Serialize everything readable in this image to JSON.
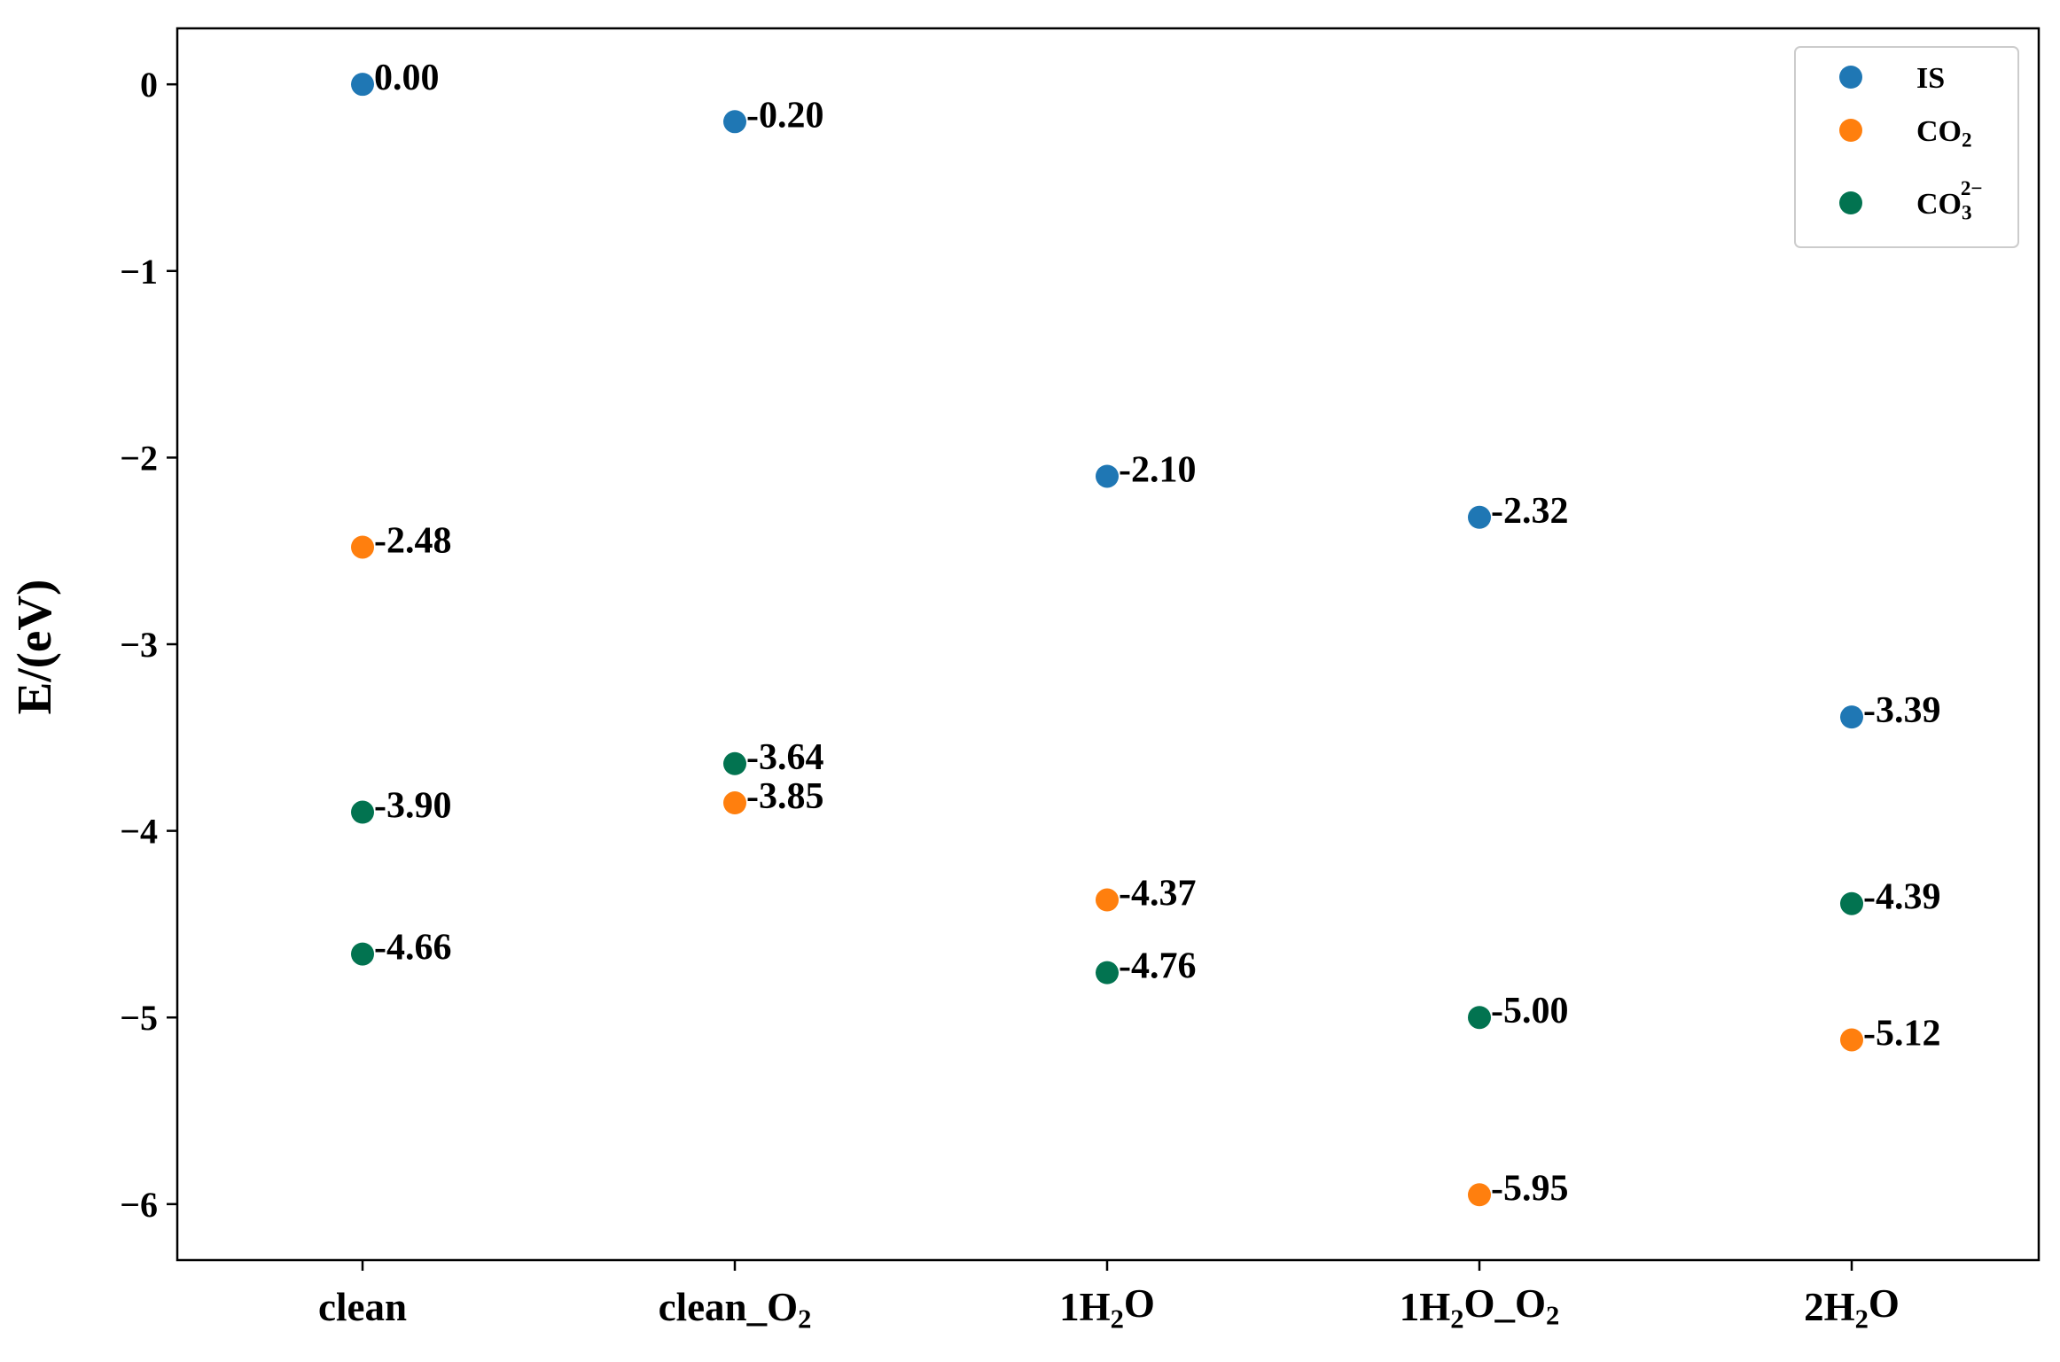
{
  "chart_data": {
    "type": "scatter",
    "title": "",
    "xlabel": "",
    "ylabel": "E/(eV)",
    "ylim": [
      -6.3,
      0.3
    ],
    "yticks": [
      0,
      -1,
      -2,
      -3,
      -4,
      -5,
      -6
    ],
    "ytick_labels": [
      "0",
      "−1",
      "−2",
      "−3",
      "−4",
      "−5",
      "−6"
    ],
    "grid": false,
    "legend_position": "top-right",
    "categories": [
      {
        "label": "clean",
        "parts": [
          {
            "t": "clean",
            "s": "n"
          }
        ]
      },
      {
        "label": "clean_O2",
        "parts": [
          {
            "t": "clean_O",
            "s": "n"
          },
          {
            "t": "2",
            "s": "sub"
          }
        ]
      },
      {
        "label": "1H2O",
        "parts": [
          {
            "t": "1H",
            "s": "n"
          },
          {
            "t": "2",
            "s": "sub"
          },
          {
            "t": "O",
            "s": "n"
          }
        ]
      },
      {
        "label": "1H2O_O2",
        "parts": [
          {
            "t": "1H",
            "s": "n"
          },
          {
            "t": "2",
            "s": "sub"
          },
          {
            "t": "O_O",
            "s": "n"
          },
          {
            "t": "2",
            "s": "sub"
          }
        ]
      },
      {
        "label": "2H2O",
        "parts": [
          {
            "t": "2H",
            "s": "n"
          },
          {
            "t": "2",
            "s": "sub"
          },
          {
            "t": "O",
            "s": "n"
          }
        ]
      }
    ],
    "series": [
      {
        "name": "IS",
        "name_parts": [
          {
            "t": "IS",
            "s": "n"
          }
        ],
        "color": "#1f77b4",
        "points": [
          {
            "x": 0,
            "y": 0.0,
            "label": "0.00"
          },
          {
            "x": 1,
            "y": -0.2,
            "label": "-0.20"
          },
          {
            "x": 2,
            "y": -2.1,
            "label": "-2.10"
          },
          {
            "x": 3,
            "y": -2.32,
            "label": "-2.32"
          },
          {
            "x": 4,
            "y": -3.39,
            "label": "-3.39"
          }
        ]
      },
      {
        "name": "CO2",
        "name_parts": [
          {
            "t": "CO",
            "s": "n"
          },
          {
            "t": "2",
            "s": "sub"
          }
        ],
        "color": "#ff7f0e",
        "points": [
          {
            "x": 0,
            "y": -2.48,
            "label": "-2.48"
          },
          {
            "x": 1,
            "y": -3.85,
            "label": "-3.85"
          },
          {
            "x": 2,
            "y": -4.37,
            "label": "-4.37"
          },
          {
            "x": 3,
            "y": -5.95,
            "label": "-5.95"
          },
          {
            "x": 4,
            "y": -5.12,
            "label": "-5.12"
          }
        ]
      },
      {
        "name": "CO3 2-",
        "name_parts": [
          {
            "t": "CO",
            "s": "n"
          },
          {
            "t": "3",
            "s": "sub"
          },
          {
            "t": "2−",
            "s": "sup"
          }
        ],
        "color": "#027350",
        "points": [
          {
            "x": 0,
            "y": -3.9,
            "label": "-3.90"
          },
          {
            "x": 0,
            "y": -4.66,
            "label": "-4.66"
          },
          {
            "x": 1,
            "y": -3.64,
            "label": "-3.64"
          },
          {
            "x": 2,
            "y": -4.76,
            "label": "-4.76"
          },
          {
            "x": 3,
            "y": -5.0,
            "label": "-5.00"
          },
          {
            "x": 4,
            "y": -4.39,
            "label": "-4.39"
          }
        ]
      }
    ]
  }
}
